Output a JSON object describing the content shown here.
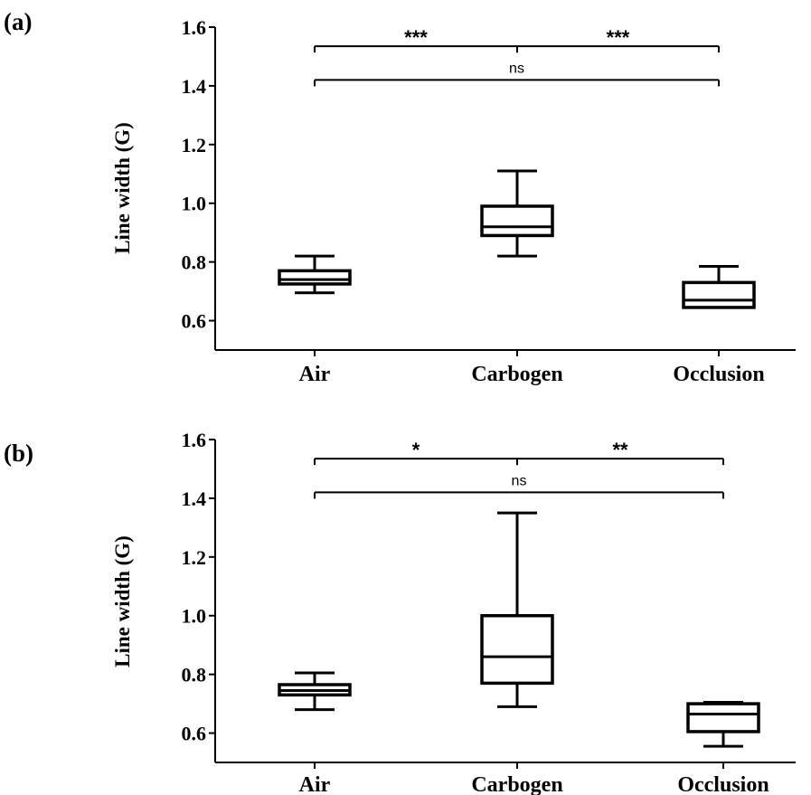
{
  "figure": {
    "panels": [
      "(a)",
      "(b)"
    ]
  },
  "chart_data": [
    {
      "type": "box",
      "panel_label": "(a)",
      "ylabel": "Line width (G)",
      "ylim": [
        0.5,
        1.6
      ],
      "yticks": [
        0.6,
        0.8,
        1.0,
        1.2,
        1.4,
        1.6
      ],
      "ytick_labels": [
        "0.6",
        "0.8",
        "1.0",
        "1.2",
        "1.4",
        "1.6"
      ],
      "categories": [
        "Air",
        "Carbogen",
        "Occlusion"
      ],
      "boxes": [
        {
          "min": 0.695,
          "q1": 0.725,
          "median": 0.74,
          "q3": 0.77,
          "max": 0.82
        },
        {
          "min": 0.82,
          "q1": 0.89,
          "median": 0.92,
          "q3": 0.99,
          "max": 1.11
        },
        {
          "min": 0.645,
          "q1": 0.645,
          "median": 0.67,
          "q3": 0.73,
          "max": 0.785
        }
      ],
      "significance": [
        {
          "from": 0,
          "to": 1,
          "label": "***",
          "level": 1.535
        },
        {
          "from": 1,
          "to": 2,
          "label": "***",
          "level": 1.535
        },
        {
          "from": 0,
          "to": 2,
          "label": "ns",
          "level": 1.42
        }
      ],
      "grid": false,
      "legend": "none"
    },
    {
      "type": "box",
      "panel_label": "(b)",
      "ylabel": "Line width (G)",
      "ylim": [
        0.5,
        1.6
      ],
      "yticks": [
        0.6,
        0.8,
        1.0,
        1.2,
        1.4,
        1.6
      ],
      "ytick_labels": [
        "0.6",
        "0.8",
        "1.0",
        "1.2",
        "1.4",
        "1.6"
      ],
      "categories": [
        "Air",
        "Carbogen",
        "Occlusion"
      ],
      "boxes": [
        {
          "min": 0.68,
          "q1": 0.73,
          "median": 0.745,
          "q3": 0.765,
          "max": 0.805
        },
        {
          "min": 0.69,
          "q1": 0.77,
          "median": 0.86,
          "q3": 1.0,
          "max": 1.35
        },
        {
          "min": 0.555,
          "q1": 0.605,
          "median": 0.665,
          "q3": 0.7,
          "max": 0.705
        }
      ],
      "significance": [
        {
          "from": 0,
          "to": 1,
          "label": "*",
          "level": 1.535
        },
        {
          "from": 1,
          "to": 2,
          "label": "**",
          "level": 1.535
        },
        {
          "from": 0,
          "to": 2,
          "label": "ns",
          "level": 1.42
        }
      ],
      "grid": false,
      "legend": "none"
    }
  ]
}
